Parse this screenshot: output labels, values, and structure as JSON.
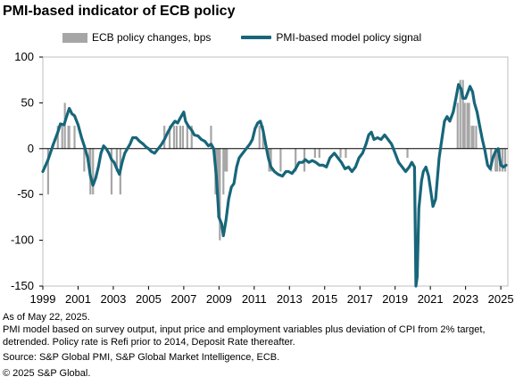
{
  "title": "PMI-based indicator of ECB policy",
  "footnotes": {
    "asof": "As of May 22, 2025.",
    "note1": "PMI model based on survey output, input price and employment variables plus deviation of CPI from 2% target,",
    "note2": "detrended. Policy rate is Refi prior to 2014, Deposit Rate thereafter.",
    "source": "Source: S&P Global PMI, S&P Global Market Intelligence, ECB.",
    "copyright": "© 2025 S&P Global."
  },
  "colors": {
    "bars": "#a6a6a6",
    "line": "#17667a",
    "zero": "#000000"
  },
  "chart_data": {
    "type": "bar+line",
    "xlim": [
      1999.0,
      2025.4
    ],
    "ylim": [
      -150,
      100
    ],
    "yticks": [
      100,
      50,
      0,
      -50,
      -100,
      -150
    ],
    "xticks": [
      "1999",
      "2001",
      "2003",
      "2005",
      "2007",
      "2009",
      "2011",
      "2013",
      "2015",
      "2017",
      "2019",
      "2021",
      "2023",
      "2025"
    ],
    "legend": {
      "placement": "top",
      "bar_label": "ECB policy changes, bps",
      "line_label": "PMI-based model policy signal"
    },
    "bars": [
      [
        1999.3,
        -50
      ],
      [
        1999.85,
        25
      ],
      [
        2000.1,
        25
      ],
      [
        2000.25,
        50
      ],
      [
        2000.45,
        25
      ],
      [
        2000.5,
        25
      ],
      [
        2000.8,
        25
      ],
      [
        2001.35,
        -25
      ],
      [
        2001.65,
        -25
      ],
      [
        2001.7,
        -50
      ],
      [
        2001.85,
        -50
      ],
      [
        2002.9,
        -50
      ],
      [
        2003.2,
        -25
      ],
      [
        2003.4,
        -50
      ],
      [
        2005.9,
        25
      ],
      [
        2006.2,
        25
      ],
      [
        2006.45,
        25
      ],
      [
        2006.6,
        25
      ],
      [
        2006.8,
        25
      ],
      [
        2006.95,
        25
      ],
      [
        2007.2,
        25
      ],
      [
        2007.45,
        25
      ],
      [
        2008.55,
        25
      ],
      [
        2008.8,
        -50
      ],
      [
        2008.9,
        -50
      ],
      [
        2008.95,
        -75
      ],
      [
        2009.05,
        -100
      ],
      [
        2009.25,
        -50
      ],
      [
        2009.35,
        -25
      ],
      [
        2009.45,
        -25
      ],
      [
        2011.3,
        25
      ],
      [
        2011.5,
        25
      ],
      [
        2011.85,
        -25
      ],
      [
        2011.95,
        -25
      ],
      [
        2012.5,
        -25
      ],
      [
        2013.35,
        -25
      ],
      [
        2013.85,
        -25
      ],
      [
        2014.45,
        -10
      ],
      [
        2014.7,
        -10
      ],
      [
        2015.9,
        -10
      ],
      [
        2016.2,
        -10
      ],
      [
        2019.7,
        -10
      ],
      [
        2022.55,
        50
      ],
      [
        2022.7,
        75
      ],
      [
        2022.85,
        75
      ],
      [
        2022.95,
        50
      ],
      [
        2023.1,
        50
      ],
      [
        2023.2,
        50
      ],
      [
        2023.35,
        25
      ],
      [
        2023.45,
        25
      ],
      [
        2023.6,
        25
      ],
      [
        2024.45,
        -25
      ],
      [
        2024.7,
        -25
      ],
      [
        2024.8,
        -25
      ],
      [
        2024.95,
        -25
      ],
      [
        2025.1,
        -25
      ],
      [
        2025.25,
        -25
      ]
    ],
    "line": [
      [
        1999.0,
        -25
      ],
      [
        1999.3,
        -12
      ],
      [
        1999.6,
        5
      ],
      [
        1999.85,
        18
      ],
      [
        2000.0,
        27
      ],
      [
        2000.2,
        26
      ],
      [
        2000.35,
        35
      ],
      [
        2000.5,
        44
      ],
      [
        2000.65,
        38
      ],
      [
        2000.8,
        36
      ],
      [
        2001.0,
        26
      ],
      [
        2001.2,
        12
      ],
      [
        2001.4,
        0
      ],
      [
        2001.55,
        -10
      ],
      [
        2001.7,
        -30
      ],
      [
        2001.85,
        -40
      ],
      [
        2002.0,
        -32
      ],
      [
        2002.15,
        -20
      ],
      [
        2002.3,
        -5
      ],
      [
        2002.45,
        3
      ],
      [
        2002.6,
        0
      ],
      [
        2002.75,
        -5
      ],
      [
        2002.9,
        -12
      ],
      [
        2003.05,
        -15
      ],
      [
        2003.2,
        -22
      ],
      [
        2003.35,
        -28
      ],
      [
        2003.5,
        -15
      ],
      [
        2003.65,
        -5
      ],
      [
        2003.8,
        0
      ],
      [
        2003.95,
        5
      ],
      [
        2004.1,
        12
      ],
      [
        2004.3,
        12
      ],
      [
        2004.5,
        8
      ],
      [
        2004.7,
        5
      ],
      [
        2004.85,
        2
      ],
      [
        2005.0,
        0
      ],
      [
        2005.15,
        -3
      ],
      [
        2005.35,
        -5
      ],
      [
        2005.55,
        0
      ],
      [
        2005.75,
        5
      ],
      [
        2005.9,
        10
      ],
      [
        2006.1,
        18
      ],
      [
        2006.3,
        25
      ],
      [
        2006.5,
        30
      ],
      [
        2006.65,
        28
      ],
      [
        2006.85,
        35
      ],
      [
        2007.0,
        40
      ],
      [
        2007.1,
        30
      ],
      [
        2007.25,
        25
      ],
      [
        2007.45,
        20
      ],
      [
        2007.6,
        15
      ],
      [
        2007.8,
        14
      ],
      [
        2008.0,
        10
      ],
      [
        2008.2,
        8
      ],
      [
        2008.4,
        3
      ],
      [
        2008.55,
        5
      ],
      [
        2008.7,
        0
      ],
      [
        2008.85,
        -30
      ],
      [
        2009.0,
        -75
      ],
      [
        2009.15,
        -82
      ],
      [
        2009.25,
        -95
      ],
      [
        2009.4,
        -78
      ],
      [
        2009.55,
        -55
      ],
      [
        2009.7,
        -42
      ],
      [
        2009.85,
        -38
      ],
      [
        2010.0,
        -20
      ],
      [
        2010.15,
        -10
      ],
      [
        2010.35,
        -5
      ],
      [
        2010.55,
        0
      ],
      [
        2010.75,
        5
      ],
      [
        2010.9,
        10
      ],
      [
        2011.05,
        22
      ],
      [
        2011.2,
        28
      ],
      [
        2011.35,
        30
      ],
      [
        2011.5,
        20
      ],
      [
        2011.65,
        5
      ],
      [
        2011.8,
        -10
      ],
      [
        2011.95,
        -20
      ],
      [
        2012.15,
        -25
      ],
      [
        2012.35,
        -28
      ],
      [
        2012.6,
        -30
      ],
      [
        2012.8,
        -25
      ],
      [
        2012.95,
        -25
      ],
      [
        2013.15,
        -27
      ],
      [
        2013.35,
        -22
      ],
      [
        2013.55,
        -15
      ],
      [
        2013.75,
        -15
      ],
      [
        2013.9,
        -12
      ],
      [
        2014.1,
        -15
      ],
      [
        2014.3,
        -13
      ],
      [
        2014.5,
        -15
      ],
      [
        2014.7,
        -18
      ],
      [
        2014.9,
        -18
      ],
      [
        2015.1,
        -20
      ],
      [
        2015.3,
        -10
      ],
      [
        2015.55,
        -5
      ],
      [
        2015.75,
        -10
      ],
      [
        2015.95,
        -15
      ],
      [
        2016.15,
        -22
      ],
      [
        2016.35,
        -20
      ],
      [
        2016.55,
        -25
      ],
      [
        2016.75,
        -20
      ],
      [
        2016.95,
        -10
      ],
      [
        2017.15,
        -5
      ],
      [
        2017.35,
        5
      ],
      [
        2017.5,
        15
      ],
      [
        2017.65,
        18
      ],
      [
        2017.8,
        10
      ],
      [
        2018.0,
        12
      ],
      [
        2018.2,
        10
      ],
      [
        2018.4,
        15
      ],
      [
        2018.6,
        10
      ],
      [
        2018.8,
        5
      ],
      [
        2019.0,
        -5
      ],
      [
        2019.2,
        -15
      ],
      [
        2019.4,
        -20
      ],
      [
        2019.6,
        -25
      ],
      [
        2019.8,
        -20
      ],
      [
        2019.95,
        -15
      ],
      [
        2020.1,
        -20
      ],
      [
        2020.18,
        -150
      ],
      [
        2020.25,
        -140
      ],
      [
        2020.35,
        -65
      ],
      [
        2020.5,
        -35
      ],
      [
        2020.6,
        -25
      ],
      [
        2020.75,
        -20
      ],
      [
        2020.9,
        -30
      ],
      [
        2021.05,
        -50
      ],
      [
        2021.15,
        -63
      ],
      [
        2021.3,
        -55
      ],
      [
        2021.5,
        -10
      ],
      [
        2021.65,
        10
      ],
      [
        2021.8,
        30
      ],
      [
        2021.95,
        35
      ],
      [
        2022.1,
        30
      ],
      [
        2022.3,
        40
      ],
      [
        2022.45,
        55
      ],
      [
        2022.6,
        70
      ],
      [
        2022.75,
        65
      ],
      [
        2022.85,
        55
      ],
      [
        2023.0,
        55
      ],
      [
        2023.1,
        60
      ],
      [
        2023.25,
        68
      ],
      [
        2023.4,
        62
      ],
      [
        2023.5,
        50
      ],
      [
        2023.65,
        40
      ],
      [
        2023.8,
        25
      ],
      [
        2023.95,
        10
      ],
      [
        2024.1,
        -2
      ],
      [
        2024.25,
        -18
      ],
      [
        2024.4,
        -22
      ],
      [
        2024.55,
        -10
      ],
      [
        2024.7,
        -3
      ],
      [
        2024.85,
        0
      ],
      [
        2025.0,
        -18
      ],
      [
        2025.15,
        -20
      ],
      [
        2025.3,
        -18
      ]
    ]
  }
}
